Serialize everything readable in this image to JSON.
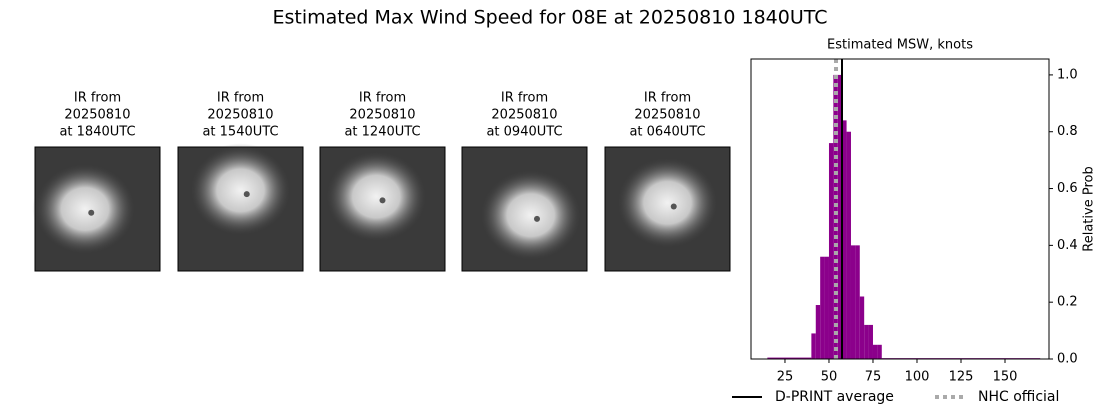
{
  "title": "Estimated Max Wind Speed for 08E at 20250810 1840UTC",
  "panels": [
    {
      "title_lines": [
        "IR from",
        "20250810",
        "at 1840UTC"
      ]
    },
    {
      "title_lines": [
        "IR from",
        "20250810",
        "at 1540UTC"
      ]
    },
    {
      "title_lines": [
        "IR from",
        "20250810",
        "at 1240UTC"
      ]
    },
    {
      "title_lines": [
        "IR from",
        "20250810",
        "at 0940UTC"
      ]
    },
    {
      "title_lines": [
        "IR from",
        "20250810",
        "at 0640UTC"
      ]
    }
  ],
  "chart_data": {
    "type": "histogram",
    "title": "Estimated MSW, knots",
    "y_label": "Relative Prob",
    "bins": [
      15,
      40,
      42.5,
      45,
      47.5,
      50,
      52.5,
      55,
      57.5,
      60,
      62.5,
      65,
      67.5,
      70,
      72.5,
      75,
      77.5,
      80,
      170
    ],
    "counts": [
      0.005,
      0.09,
      0.19,
      0.36,
      0.36,
      0.76,
      1.0,
      1.0,
      0.84,
      0.8,
      0.4,
      0.4,
      0.22,
      0.12,
      0.12,
      0.05,
      0.05,
      0.003
    ],
    "color": "#8b008b",
    "xlim": [
      5.7,
      175
    ],
    "ylim": [
      0,
      1.056
    ],
    "xticks": [
      25,
      50,
      75,
      100,
      125,
      150
    ],
    "yticks": [
      {
        "value": 0,
        "label": "0.0"
      },
      {
        "value": 0.2,
        "label": "0.2"
      },
      {
        "value": 0.4,
        "label": "0.4"
      },
      {
        "value": 0.6,
        "label": "0.6"
      },
      {
        "value": 0.8,
        "label": "0.8"
      },
      {
        "value": 1,
        "label": "1.0"
      }
    ],
    "lines": [
      {
        "name": "D-PRINT average",
        "value": 57.4,
        "color": "#000000",
        "style": "solid"
      },
      {
        "name": "NHC official",
        "value": 54,
        "color": "#aaaaaa",
        "style": "dotted"
      }
    ],
    "legend": "lower center"
  }
}
